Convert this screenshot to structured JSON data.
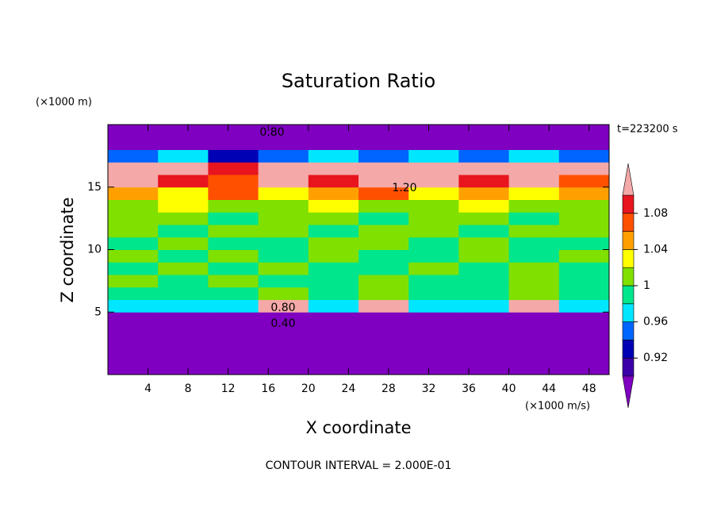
{
  "chart_data": {
    "type": "contour",
    "title": "Saturation Ratio",
    "xlabel": "X coordinate",
    "ylabel": "Z coordinate",
    "x_unit": "(×1000 m/s)",
    "y_unit": "(×1000 m)",
    "time_label": "t=223200 s",
    "footer": "CONTOUR INTERVAL = 2.000E-01",
    "contour_labels": [
      "0.80",
      "1.20",
      "0.80",
      "0.40"
    ],
    "xlim": [
      0,
      50
    ],
    "ylim": [
      0,
      20
    ],
    "xticks": [
      4,
      8,
      12,
      16,
      20,
      24,
      28,
      32,
      36,
      40,
      44,
      48
    ],
    "yticks": [
      5,
      10,
      15
    ],
    "x": [
      2.5,
      7.5,
      12.5,
      17.5,
      22.5,
      27.5,
      32.5,
      37.5,
      42.5,
      47.5
    ],
    "y": [
      0.5,
      1.5,
      2.5,
      3.5,
      4.5,
      5.5,
      6.5,
      7.5,
      8.5,
      9.5,
      10.5,
      11.5,
      12.5,
      13.5,
      14.5,
      15.5,
      16.5,
      17.5,
      18.5,
      19.5
    ],
    "values": [
      [
        0.3,
        0.3,
        0.3,
        0.3,
        0.3,
        0.3,
        0.3,
        0.3,
        0.3,
        0.3
      ],
      [
        0.35,
        0.35,
        0.35,
        0.35,
        0.35,
        0.35,
        0.35,
        0.35,
        0.35,
        0.35
      ],
      [
        0.4,
        0.4,
        0.4,
        0.4,
        0.4,
        0.4,
        0.4,
        0.4,
        0.4,
        0.4
      ],
      [
        0.5,
        0.5,
        0.5,
        0.5,
        0.5,
        0.5,
        0.5,
        0.5,
        0.5,
        0.5
      ],
      [
        0.7,
        0.7,
        0.7,
        0.7,
        0.7,
        0.7,
        0.7,
        0.7,
        0.7,
        0.7
      ],
      [
        0.97,
        0.97,
        0.97,
        1.12,
        0.97,
        1.12,
        0.97,
        0.97,
        1.12,
        0.97
      ],
      [
        0.99,
        0.99,
        0.99,
        1.0,
        0.99,
        1.0,
        0.99,
        0.99,
        1.0,
        0.99
      ],
      [
        1.01,
        0.99,
        1.01,
        0.99,
        0.99,
        1.01,
        0.99,
        0.99,
        1.01,
        0.99
      ],
      [
        0.99,
        1.01,
        0.99,
        1.01,
        0.99,
        0.99,
        1.01,
        0.99,
        1.01,
        0.99
      ],
      [
        1.01,
        0.99,
        1.01,
        0.99,
        1.01,
        0.99,
        0.99,
        1.01,
        0.99,
        1.01
      ],
      [
        0.99,
        1.01,
        0.99,
        0.99,
        1.01,
        1.01,
        0.99,
        1.01,
        0.99,
        0.99
      ],
      [
        1.01,
        0.99,
        1.01,
        1.01,
        0.99,
        1.01,
        1.01,
        0.99,
        1.01,
        1.01
      ],
      [
        1.01,
        1.01,
        0.99,
        1.01,
        1.01,
        0.99,
        1.01,
        1.01,
        0.99,
        1.01
      ],
      [
        1.01,
        1.03,
        1.01,
        1.01,
        1.03,
        1.01,
        1.01,
        1.03,
        1.01,
        1.01
      ],
      [
        1.05,
        1.03,
        1.07,
        1.03,
        1.05,
        1.07,
        1.03,
        1.05,
        1.03,
        1.05
      ],
      [
        1.12,
        1.09,
        1.07,
        1.12,
        1.09,
        1.12,
        1.12,
        1.09,
        1.12,
        1.07
      ],
      [
        1.12,
        1.12,
        1.09,
        1.12,
        1.12,
        1.12,
        1.12,
        1.12,
        1.12,
        1.12
      ],
      [
        0.95,
        0.97,
        0.93,
        0.95,
        0.97,
        0.95,
        0.97,
        0.95,
        0.97,
        0.95
      ],
      [
        0.8,
        0.8,
        0.8,
        0.8,
        0.8,
        0.8,
        0.8,
        0.8,
        0.8,
        0.8
      ],
      [
        0.6,
        0.6,
        0.6,
        0.6,
        0.6,
        0.6,
        0.6,
        0.6,
        0.6,
        0.6
      ]
    ],
    "colorbar": {
      "levels": [
        0.9,
        0.92,
        0.94,
        0.96,
        0.98,
        1,
        1.02,
        1.04,
        1.06,
        1.08,
        1.1
      ],
      "colors": [
        "#7f00c0",
        "#3c00a8",
        "#0000b4",
        "#0064ff",
        "#00e6ff",
        "#00e68c",
        "#80e000",
        "#ffff00",
        "#ffa000",
        "#ff5000",
        "#e8141e",
        "#f4a8a8"
      ],
      "ticks": [
        0.92,
        0.96,
        1,
        1.04,
        1.08
      ]
    }
  }
}
